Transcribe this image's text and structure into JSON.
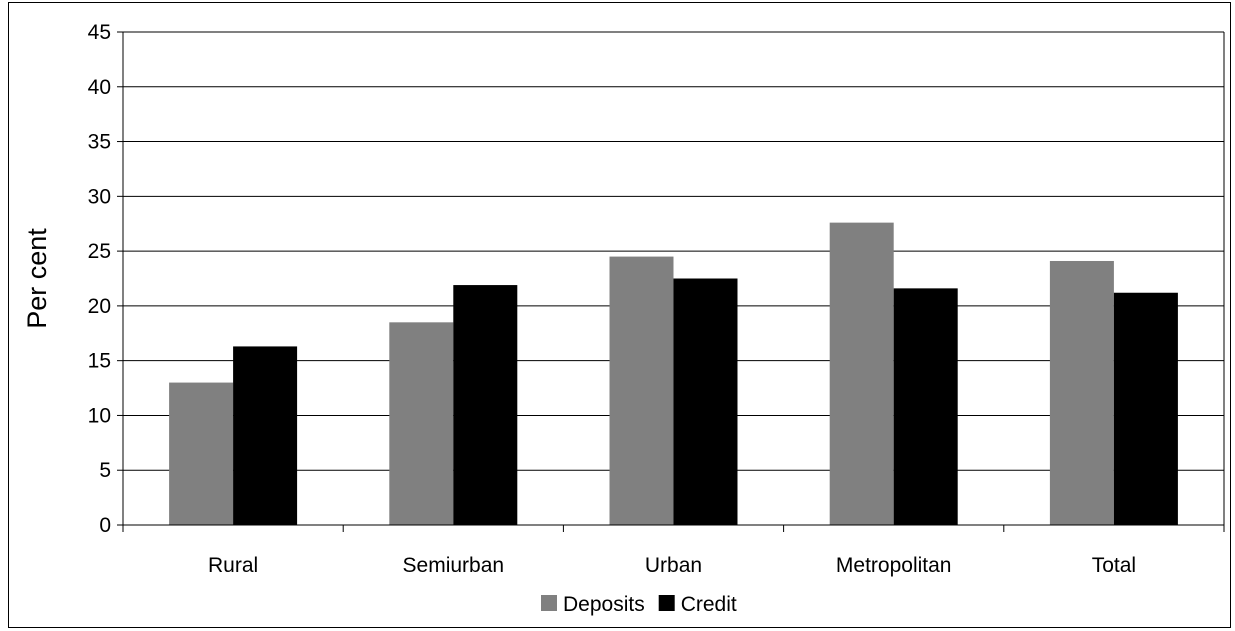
{
  "chart_data": {
    "type": "bar",
    "categories": [
      "Rural",
      "Semiurban",
      "Urban",
      "Metropolitan",
      "Total"
    ],
    "series": [
      {
        "name": "Deposits",
        "values": [
          13.0,
          18.5,
          24.5,
          27.6,
          24.1
        ],
        "color": "#808080"
      },
      {
        "name": "Credit",
        "values": [
          16.3,
          21.9,
          22.5,
          21.6,
          21.2
        ],
        "color": "#000000"
      }
    ],
    "title": "",
    "xlabel": "",
    "ylabel": "Per cent",
    "ylim": [
      0,
      45
    ],
    "ytick_step": 5,
    "grid": true,
    "legend_position": "bottom"
  }
}
